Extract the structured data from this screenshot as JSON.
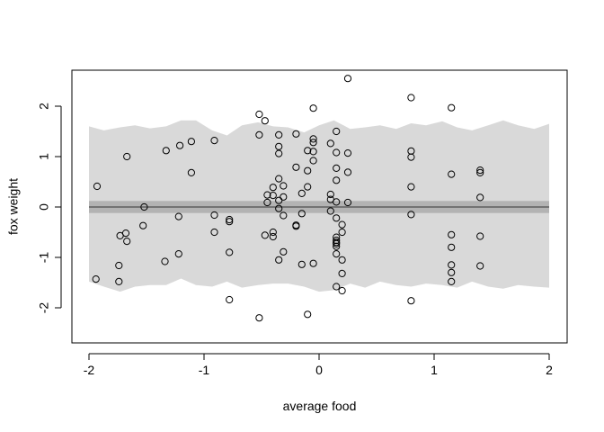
{
  "chart_data": {
    "type": "scatter",
    "xlabel": "average food",
    "ylabel": "fox weight",
    "xlim": [
      -2.0,
      2.0
    ],
    "ylim": [
      -2.3,
      2.6
    ],
    "x_ticks": [
      -2,
      -1,
      0,
      1,
      2
    ],
    "x_tick_labels": [
      "-2",
      "-1",
      "0",
      "1",
      "2"
    ],
    "y_ticks": [
      -2,
      -1,
      0,
      1,
      2
    ],
    "y_tick_labels": [
      "-2",
      "-1",
      "0",
      "1",
      "2"
    ],
    "grid": false,
    "colors": {
      "prediction_band": "#d9d9d9",
      "mean_ci_band": "#b3b3b3",
      "mean_line": "#4d4d4d",
      "points": "#000000",
      "axes": "#000000"
    },
    "mean_line": {
      "x": [
        -2,
        2
      ],
      "y": [
        0,
        0
      ]
    },
    "mean_interval": {
      "x": [
        -2,
        2
      ],
      "lower": [
        -0.12,
        -0.12
      ],
      "upper": [
        0.12,
        0.12
      ]
    },
    "prediction_interval": {
      "x": [
        -2.0,
        -1.87,
        -1.73,
        -1.6,
        -1.47,
        -1.33,
        -1.2,
        -1.07,
        -0.93,
        -0.8,
        -0.67,
        -0.53,
        -0.4,
        -0.27,
        -0.13,
        0.0,
        0.13,
        0.27,
        0.4,
        0.53,
        0.67,
        0.8,
        0.93,
        1.07,
        1.2,
        1.33,
        1.47,
        1.6,
        1.73,
        1.87,
        2.0
      ],
      "upper": [
        1.6,
        1.52,
        1.58,
        1.62,
        1.56,
        1.6,
        1.72,
        1.72,
        1.52,
        1.42,
        1.62,
        1.68,
        1.6,
        1.58,
        1.48,
        1.62,
        1.72,
        1.55,
        1.58,
        1.62,
        1.55,
        1.66,
        1.62,
        1.7,
        1.58,
        1.52,
        1.62,
        1.72,
        1.62,
        1.55,
        1.65
      ],
      "lower": [
        -1.48,
        -1.58,
        -1.68,
        -1.58,
        -1.55,
        -1.55,
        -1.42,
        -1.55,
        -1.58,
        -1.48,
        -1.6,
        -1.55,
        -1.52,
        -1.52,
        -1.58,
        -1.68,
        -1.65,
        -1.52,
        -1.6,
        -1.48,
        -1.55,
        -1.58,
        -1.52,
        -1.55,
        -1.6,
        -1.48,
        -1.58,
        -1.62,
        -1.55,
        -1.58,
        -1.6
      ]
    },
    "series": [
      {
        "points": [
          {
            "x": -1.93,
            "y": 0.41
          },
          {
            "x": -1.94,
            "y": -1.43
          },
          {
            "x": -1.73,
            "y": -0.57
          },
          {
            "x": -1.74,
            "y": -1.16
          },
          {
            "x": -1.74,
            "y": -1.48
          },
          {
            "x": -1.67,
            "y": 1.0
          },
          {
            "x": -1.68,
            "y": -0.52
          },
          {
            "x": -1.67,
            "y": -0.68
          },
          {
            "x": -1.52,
            "y": 0.0
          },
          {
            "x": -1.53,
            "y": -0.37
          },
          {
            "x": -1.33,
            "y": 1.12
          },
          {
            "x": -1.34,
            "y": -1.08
          },
          {
            "x": -1.21,
            "y": 1.22
          },
          {
            "x": -1.22,
            "y": -0.19
          },
          {
            "x": -1.22,
            "y": -0.93
          },
          {
            "x": -1.11,
            "y": 1.3
          },
          {
            "x": -1.11,
            "y": 0.68
          },
          {
            "x": -0.91,
            "y": 1.32
          },
          {
            "x": -0.91,
            "y": -0.16
          },
          {
            "x": -0.91,
            "y": -0.5
          },
          {
            "x": -0.78,
            "y": -0.25
          },
          {
            "x": -0.78,
            "y": -0.29
          },
          {
            "x": -0.78,
            "y": -0.9
          },
          {
            "x": -0.78,
            "y": -1.84
          },
          {
            "x": -0.52,
            "y": 1.84
          },
          {
            "x": -0.52,
            "y": 1.43
          },
          {
            "x": -0.52,
            "y": -2.2
          },
          {
            "x": -0.47,
            "y": 1.71
          },
          {
            "x": -0.45,
            "y": 0.24
          },
          {
            "x": -0.45,
            "y": 0.09
          },
          {
            "x": -0.47,
            "y": -0.56
          },
          {
            "x": -0.4,
            "y": 0.39
          },
          {
            "x": -0.4,
            "y": 0.23
          },
          {
            "x": -0.4,
            "y": -0.5
          },
          {
            "x": -0.4,
            "y": -0.59
          },
          {
            "x": -0.35,
            "y": 1.43
          },
          {
            "x": -0.35,
            "y": 1.2
          },
          {
            "x": -0.35,
            "y": 1.06
          },
          {
            "x": -0.35,
            "y": 0.56
          },
          {
            "x": -0.35,
            "y": 0.13
          },
          {
            "x": -0.35,
            "y": -0.03
          },
          {
            "x": -0.35,
            "y": -1.05
          },
          {
            "x": -0.31,
            "y": 0.42
          },
          {
            "x": -0.31,
            "y": 0.2
          },
          {
            "x": -0.31,
            "y": -0.17
          },
          {
            "x": -0.31,
            "y": -0.89
          },
          {
            "x": -0.2,
            "y": 1.45
          },
          {
            "x": -0.2,
            "y": 0.79
          },
          {
            "x": -0.2,
            "y": -0.36
          },
          {
            "x": -0.2,
            "y": -0.38
          },
          {
            "x": -0.15,
            "y": 0.27
          },
          {
            "x": -0.15,
            "y": -0.13
          },
          {
            "x": -0.15,
            "y": -1.14
          },
          {
            "x": -0.1,
            "y": 1.12
          },
          {
            "x": -0.1,
            "y": 0.72
          },
          {
            "x": -0.1,
            "y": 0.4
          },
          {
            "x": -0.1,
            "y": -2.13
          },
          {
            "x": -0.05,
            "y": 1.96
          },
          {
            "x": -0.05,
            "y": 1.35
          },
          {
            "x": -0.05,
            "y": 1.28
          },
          {
            "x": -0.05,
            "y": 1.1
          },
          {
            "x": -0.05,
            "y": 0.92
          },
          {
            "x": -0.05,
            "y": -1.12
          },
          {
            "x": 0.1,
            "y": 1.26
          },
          {
            "x": 0.1,
            "y": 0.25
          },
          {
            "x": 0.1,
            "y": 0.15
          },
          {
            "x": 0.1,
            "y": -0.08
          },
          {
            "x": 0.15,
            "y": 1.5
          },
          {
            "x": 0.15,
            "y": 1.08
          },
          {
            "x": 0.15,
            "y": 0.77
          },
          {
            "x": 0.15,
            "y": 0.53
          },
          {
            "x": 0.15,
            "y": 0.1
          },
          {
            "x": 0.15,
            "y": -0.22
          },
          {
            "x": 0.15,
            "y": -0.6
          },
          {
            "x": 0.15,
            "y": -0.66
          },
          {
            "x": 0.15,
            "y": -0.7
          },
          {
            "x": 0.15,
            "y": -0.73
          },
          {
            "x": 0.15,
            "y": -0.78
          },
          {
            "x": 0.15,
            "y": -0.93
          },
          {
            "x": 0.15,
            "y": -1.58
          },
          {
            "x": 0.2,
            "y": -0.35
          },
          {
            "x": 0.2,
            "y": -0.5
          },
          {
            "x": 0.2,
            "y": -1.05
          },
          {
            "x": 0.2,
            "y": -1.32
          },
          {
            "x": 0.2,
            "y": -1.66
          },
          {
            "x": 0.25,
            "y": 2.55
          },
          {
            "x": 0.25,
            "y": 1.07
          },
          {
            "x": 0.25,
            "y": 0.69
          },
          {
            "x": 0.25,
            "y": 0.09
          },
          {
            "x": 0.8,
            "y": 2.17
          },
          {
            "x": 0.8,
            "y": 1.11
          },
          {
            "x": 0.8,
            "y": 0.99
          },
          {
            "x": 0.8,
            "y": 0.4
          },
          {
            "x": 0.8,
            "y": -0.15
          },
          {
            "x": 0.8,
            "y": -1.86
          },
          {
            "x": 1.15,
            "y": 1.97
          },
          {
            "x": 1.15,
            "y": 0.65
          },
          {
            "x": 1.15,
            "y": -0.55
          },
          {
            "x": 1.15,
            "y": -0.8
          },
          {
            "x": 1.15,
            "y": -1.15
          },
          {
            "x": 1.15,
            "y": -1.3
          },
          {
            "x": 1.15,
            "y": -1.48
          },
          {
            "x": 1.4,
            "y": 0.73
          },
          {
            "x": 1.4,
            "y": 0.68
          },
          {
            "x": 1.4,
            "y": 0.19
          },
          {
            "x": 1.4,
            "y": -0.58
          },
          {
            "x": 1.4,
            "y": -1.17
          }
        ]
      }
    ]
  }
}
